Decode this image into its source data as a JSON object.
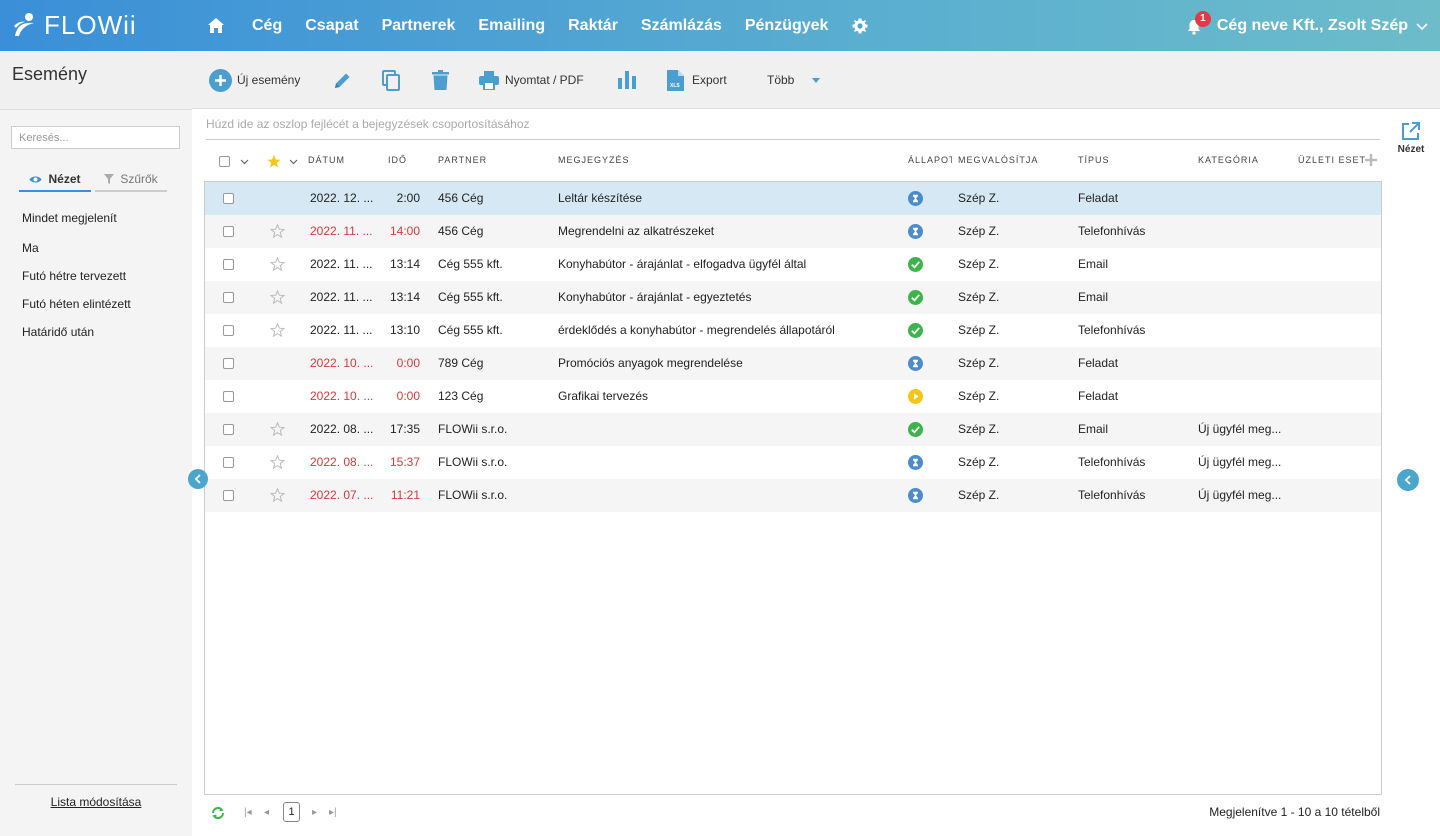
{
  "brand": {
    "name": "FLOWii"
  },
  "nav": {
    "items": [
      "Cég",
      "Csapat",
      "Partnerek",
      "Emailing",
      "Raktár",
      "Számlázás",
      "Pénzügyek"
    ]
  },
  "user": {
    "notifications": "1",
    "name": "Cég neve Kft., Zsolt Szép"
  },
  "page": {
    "title": "Esemény"
  },
  "sidebar": {
    "search_placeholder": "Keresés...",
    "tab_view": "Nézet",
    "tab_filters": "Szűrők",
    "items": [
      "Mindet megjelenít",
      "Ma",
      "Futó hétre tervezett",
      "Futó héten elintézett",
      "Határidő után"
    ],
    "footer": "Lista módosítása"
  },
  "toolbar": {
    "new_event": "Új esemény",
    "print": "Nyomtat / PDF",
    "export": "Export",
    "more": "Több"
  },
  "grid": {
    "group_hint": "Húzd ide az oszlop fejlécét a bejegyzések csoportosításához",
    "columns": {
      "date": "Dátum",
      "time": "Idő",
      "partner": "Partner",
      "note": "Megjegyzés",
      "status": "Állapot",
      "owner": "Megvalósítja",
      "type": "Típus",
      "category": "Kategória",
      "business": "Üzleti eset"
    },
    "rows": [
      {
        "star": "none",
        "date": "2022. 12. ...",
        "time": "2:00",
        "overdue": false,
        "partner": "456 Cég",
        "note": "Leltár készítése",
        "status": "wait",
        "owner": "Szép Z.",
        "type": "Feladat",
        "category": ""
      },
      {
        "star": "empty",
        "date": "2022. 11. ...",
        "time": "14:00",
        "overdue": true,
        "partner": "456 Cég",
        "note": "Megrendelni az alkatrészeket",
        "status": "wait",
        "owner": "Szép Z.",
        "type": "Telefonhívás",
        "category": ""
      },
      {
        "star": "empty",
        "date": "2022. 11. ...",
        "time": "13:14",
        "overdue": false,
        "partner": "Cég 555 kft.",
        "note": "Konyhabútor - árajánlat - elfogadva ügyfél által",
        "status": "ok",
        "owner": "Szép Z.",
        "type": "Email",
        "category": ""
      },
      {
        "star": "empty",
        "date": "2022. 11. ...",
        "time": "13:14",
        "overdue": false,
        "partner": "Cég 555 kft.",
        "note": "Konyhabútor - árajánlat - egyeztetés",
        "status": "ok",
        "owner": "Szép Z.",
        "type": "Email",
        "category": ""
      },
      {
        "star": "empty",
        "date": "2022. 11. ...",
        "time": "13:10",
        "overdue": false,
        "partner": "Cég 555 kft.",
        "note": "érdeklődés a konyhabútor - megrendelés állapotáról",
        "status": "ok",
        "owner": "Szép Z.",
        "type": "Telefonhívás",
        "category": ""
      },
      {
        "star": "none",
        "date": "2022. 10. ...",
        "time": "0:00",
        "overdue": true,
        "partner": "789 Cég",
        "note": "Promóciós anyagok megrendelése",
        "status": "wait",
        "owner": "Szép Z.",
        "type": "Feladat",
        "category": ""
      },
      {
        "star": "none",
        "date": "2022. 10. ...",
        "time": "0:00",
        "overdue": true,
        "partner": "123 Cég",
        "note": "Grafikai tervezés",
        "status": "play",
        "owner": "Szép Z.",
        "type": "Feladat",
        "category": ""
      },
      {
        "star": "empty",
        "date": "2022. 08. ...",
        "time": "17:35",
        "overdue": false,
        "partner": "FLOWii s.r.o.",
        "note": "",
        "status": "ok",
        "owner": "Szép Z.",
        "type": "Email",
        "category": "Új ügyfél meg..."
      },
      {
        "star": "empty",
        "date": "2022. 08. ...",
        "time": "15:37",
        "overdue": true,
        "partner": "FLOWii s.r.o.",
        "note": "",
        "status": "wait",
        "owner": "Szép Z.",
        "type": "Telefonhívás",
        "category": "Új ügyfél meg..."
      },
      {
        "star": "empty",
        "date": "2022. 07. ...",
        "time": "11:21",
        "overdue": true,
        "partner": "FLOWii s.r.o.",
        "note": "",
        "status": "wait",
        "owner": "Szép Z.",
        "type": "Telefonhívás",
        "category": "Új ügyfél meg..."
      }
    ]
  },
  "right_panel": {
    "view_label": "Nézet"
  },
  "pager": {
    "page": "1",
    "info": "Megjelenítve 1 - 10 a 10 tételből"
  },
  "colors": {
    "accent": "#3a8fd8",
    "overdue": "#d9383c",
    "done": "#3bb54a",
    "waiting": "#4a8ccc",
    "running": "#f5c518"
  }
}
